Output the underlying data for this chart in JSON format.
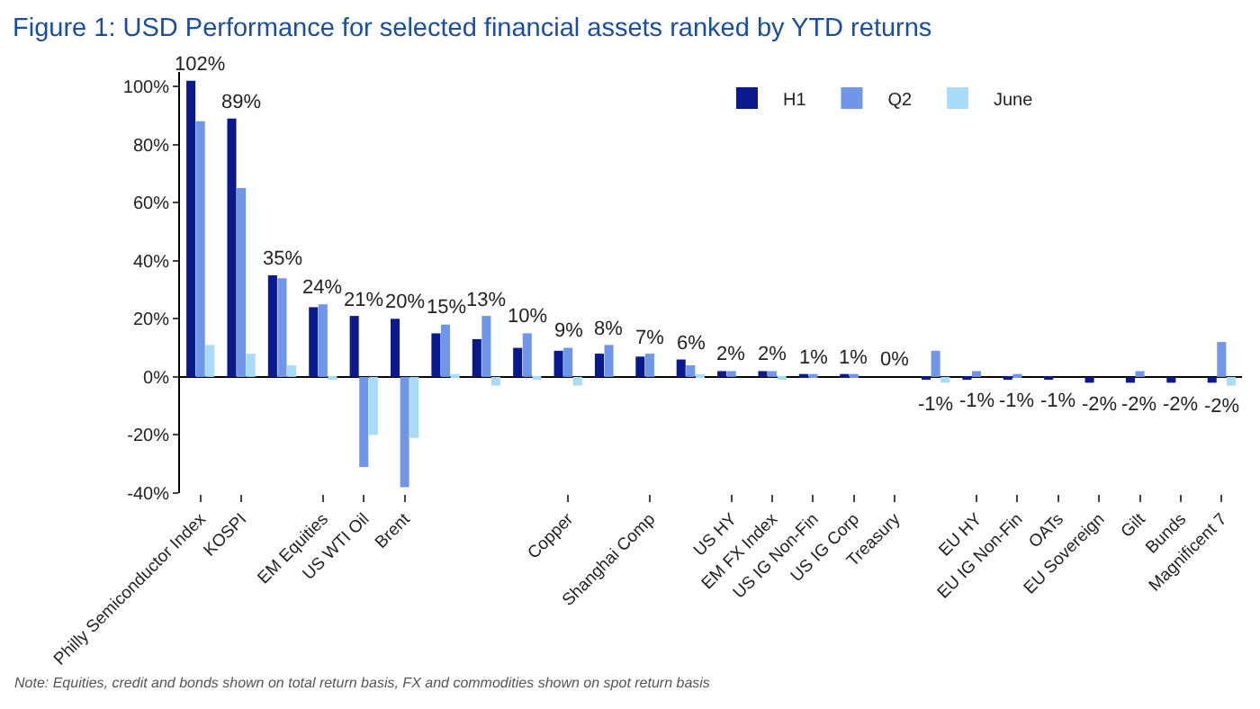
{
  "chart_data": {
    "type": "bar",
    "title": "Figure 1: USD Performance for selected financial assets ranked by YTD returns",
    "categories": [
      "Philly Semiconductor Index",
      "KOSPI",
      null,
      "EM Equities",
      "US WTI Oil",
      "Brent",
      null,
      null,
      null,
      "Copper",
      null,
      "Shanghai Comp",
      null,
      "US HY",
      "EM FX Index",
      "US IG Non-Fin",
      "US IG Corp",
      "Treasury",
      null,
      "EU HY",
      "EU IG Non-Fin",
      "OATs",
      "EU Sovereign",
      "Gilt",
      "Bunds",
      "Magnificent 7"
    ],
    "series": [
      {
        "name": "H1",
        "color": "#0a1a8c",
        "values": [
          102,
          89,
          35,
          24,
          21,
          20,
          15,
          13,
          10,
          9,
          8,
          7,
          6,
          2,
          2,
          1,
          1,
          0,
          -1,
          -1,
          -1,
          -1,
          -2,
          -2,
          -2,
          -2
        ],
        "value_labels": [
          "102%",
          "89%",
          "35%",
          "24%",
          "21%",
          "20%",
          "15%",
          "13%",
          "10%",
          "9%",
          "8%",
          "7%",
          "6%",
          "2%",
          "2%",
          "1%",
          "1%",
          "0%",
          "-1%",
          "-1%",
          "-1%",
          "-1%",
          "-2%",
          "-2%",
          "-2%",
          "-2%"
        ]
      },
      {
        "name": "Q2",
        "color": "#6f96e8",
        "values": [
          88,
          65,
          34,
          25,
          -31,
          -38,
          18,
          21,
          15,
          10,
          11,
          8,
          4,
          2,
          2,
          1,
          1,
          0,
          9,
          2,
          1,
          0,
          0,
          2,
          0,
          12
        ]
      },
      {
        "name": "June",
        "color": "#a8dcf6",
        "values": [
          11,
          8,
          4,
          -1,
          -20,
          -21,
          1,
          -3,
          -1,
          -3,
          0,
          0,
          1,
          0,
          -1,
          0,
          0,
          0,
          -2,
          0,
          0,
          0,
          0,
          0,
          0,
          -3
        ]
      }
    ],
    "ylim": [
      -40,
      105
    ],
    "yticks": [
      {
        "value": -40,
        "label": "-40%"
      },
      {
        "value": -20,
        "label": "-20%"
      },
      {
        "value": 0,
        "label": "0%"
      },
      {
        "value": 20,
        "label": "20%"
      },
      {
        "value": 40,
        "label": "40%"
      },
      {
        "value": 60,
        "label": "60%"
      },
      {
        "value": 80,
        "label": "80%"
      },
      {
        "value": 100,
        "label": "100%"
      }
    ],
    "legend": "top",
    "annotations": [
      "Note: Equities, credit and bonds shown on total return basis, FX and commodities shown on spot return basis"
    ]
  }
}
